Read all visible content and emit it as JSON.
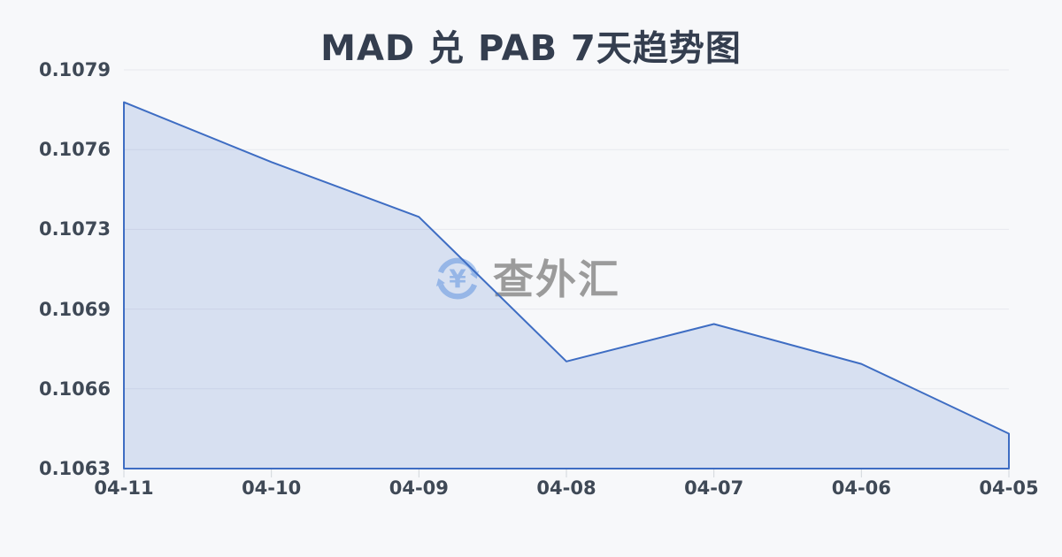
{
  "title": "MAD 兑 PAB 7天趋势图",
  "watermark": {
    "text": "查外汇",
    "yen": "¥",
    "icon": "currency-exchange-icon"
  },
  "colors": {
    "background": "#f7f8fa",
    "title_text": "#343e4f",
    "axis_text": "#3f4956",
    "line": "#3e6dc3",
    "area_fill": "#d9e1f4",
    "gridline": "#e7e9ee",
    "tick": "#d2d6dc",
    "watermark_text": "#9b9b9b",
    "watermark_icon": "#a9c6ef"
  },
  "chart_data": {
    "type": "area",
    "title": "MAD 兑 PAB 7天趋势图",
    "categories": [
      "04-11",
      "04-10",
      "04-09",
      "04-08",
      "04-07",
      "04-06",
      "04-05"
    ],
    "values": [
      0.10777,
      0.10753,
      0.10731,
      0.10673,
      0.10688,
      0.10672,
      0.10644
    ],
    "series_name": "MAD/PAB",
    "xlabel": "",
    "ylabel": "",
    "ylim": [
      0.1063,
      0.1079
    ],
    "y_tick_labels": [
      "0.1063",
      "0.1066",
      "0.1069",
      "0.1073",
      "0.1076",
      "0.1079"
    ],
    "grid": true,
    "legend": false
  }
}
